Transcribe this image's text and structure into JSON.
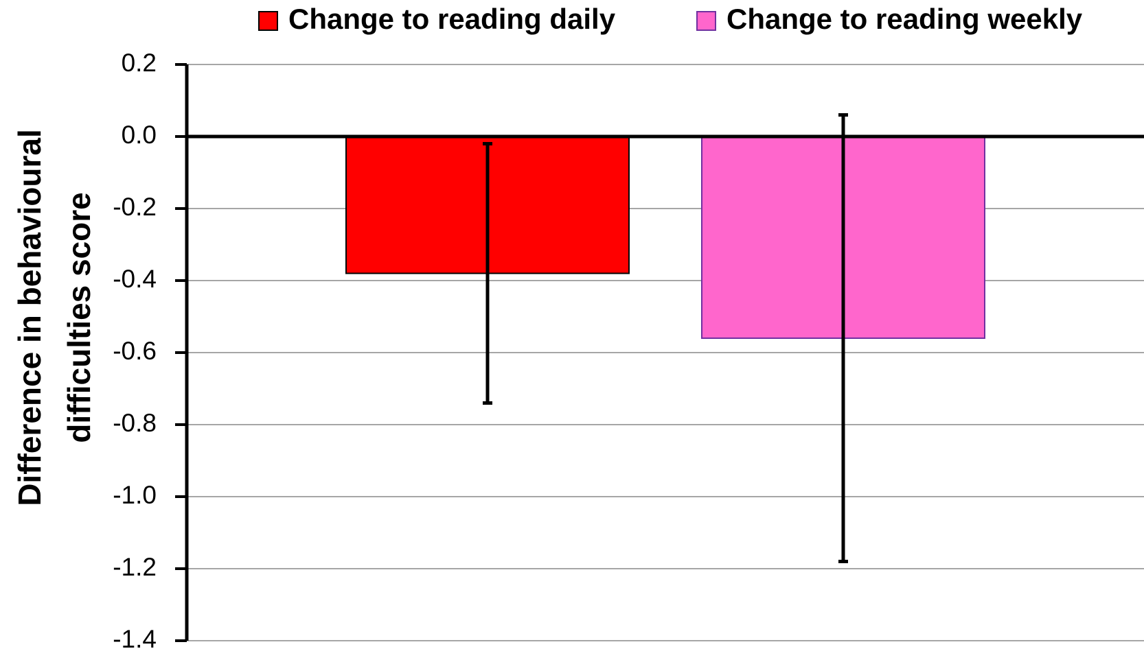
{
  "chart_data": {
    "type": "bar",
    "ylabel": [
      "Difference in behavioural",
      "difficulties score"
    ],
    "series": [
      {
        "name": "Change to reading daily",
        "color": "#ff0000",
        "border": "#000000",
        "values": [
          -0.38
        ],
        "error_low": [
          -0.74
        ],
        "error_high": [
          -0.02
        ]
      },
      {
        "name": "Change to reading weekly",
        "color": "#ff66cc",
        "border": "#7030a0",
        "values": [
          -0.56
        ],
        "error_low": [
          -1.18
        ],
        "error_high": [
          0.06
        ]
      }
    ],
    "ylim": [
      -1.4,
      0.2
    ],
    "yticks": [
      0.2,
      {
        "value": 0,
        "label": "0.0"
      },
      -0.2,
      -0.4,
      -0.6,
      -0.8,
      {
        "value": -1,
        "label": "-1.0"
      },
      -1.2,
      -1.4
    ],
    "grid": true,
    "legend": "top"
  }
}
